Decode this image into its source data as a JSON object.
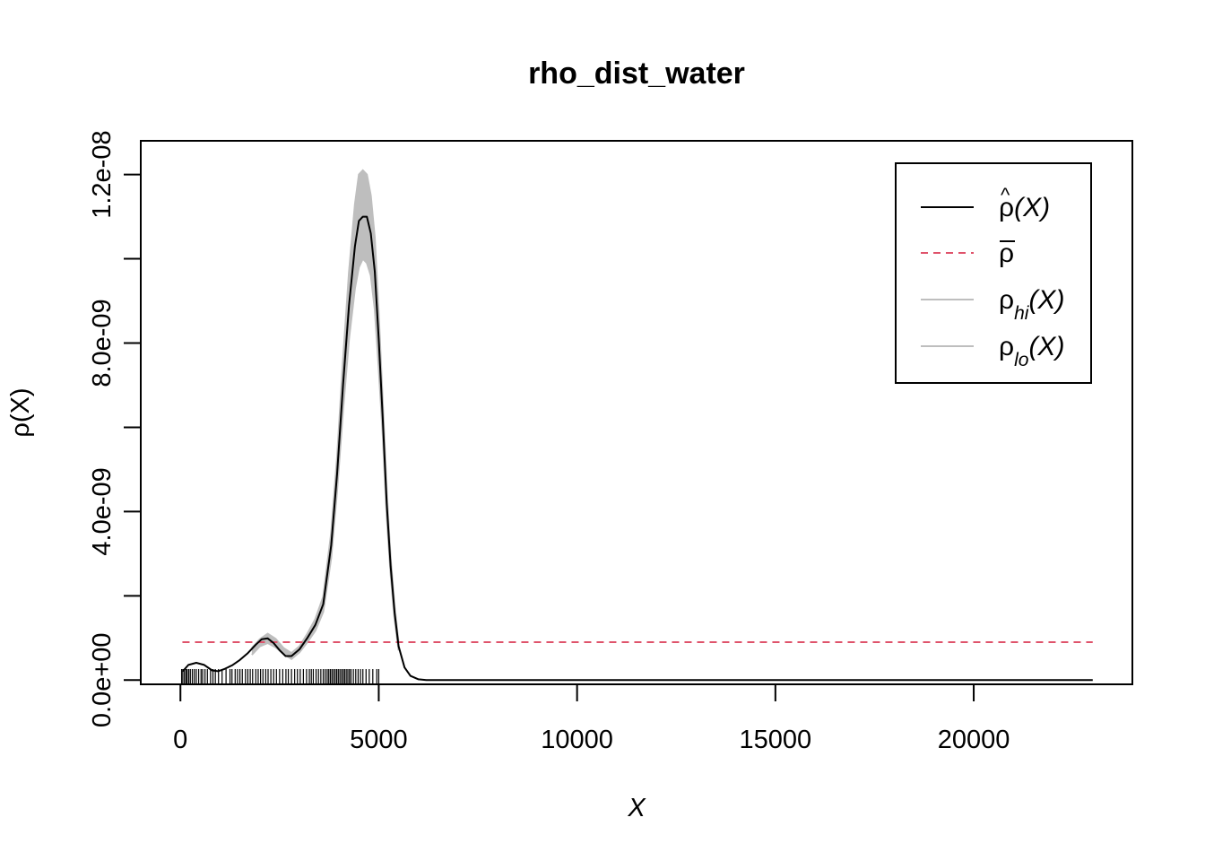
{
  "chart_data": {
    "type": "line",
    "title": "rho_dist_water",
    "xlabel": "X",
    "ylabel": "ρ(X)",
    "xlim": [
      -1000,
      24000
    ],
    "ylim": [
      -1e-10,
      1.28e-08
    ],
    "x_ticks": [
      0,
      5000,
      10000,
      15000,
      20000
    ],
    "x_tick_labels": [
      "0",
      "5000",
      "10000",
      "15000",
      "20000"
    ],
    "y_ticks": [
      0,
      2e-09,
      4e-09,
      6e-09,
      8e-09,
      1e-08,
      1.2e-08
    ],
    "y_tick_labels": [
      "0.0e+00",
      "",
      "4.0e-09",
      "",
      "8.0e-09",
      "",
      "1.2e-08"
    ],
    "grid": false,
    "legend_position": "top-right",
    "colors": {
      "estimate": "#000000",
      "average": "#DF536B",
      "band": "#BEBEBE"
    },
    "legend": [
      {
        "key": "estimate",
        "label_base": "ρ",
        "label_hat": "^",
        "label_sub": "",
        "label_tail": "(X)",
        "style": "solid",
        "color": "#000000"
      },
      {
        "key": "average",
        "label_base": "ρ",
        "label_hat": "",
        "label_bar": true,
        "label_sub": "",
        "label_tail": "",
        "style": "dashed",
        "color": "#DF536B"
      },
      {
        "key": "hi",
        "label_base": "ρ",
        "label_hat": "",
        "label_sub": "hi",
        "label_tail": "(X)",
        "style": "solid",
        "color": "#BEBEBE"
      },
      {
        "key": "lo",
        "label_base": "ρ",
        "label_hat": "",
        "label_sub": "lo",
        "label_tail": "(X)",
        "style": "solid",
        "color": "#BEBEBE"
      }
    ],
    "average_value": 9e-10,
    "series": [
      {
        "key": "estimate",
        "x": [
          50,
          200,
          400,
          600,
          800,
          950,
          1100,
          1300,
          1500,
          1700,
          1900,
          2050,
          2200,
          2350,
          2500,
          2650,
          2800,
          3000,
          3200,
          3400,
          3600,
          3800,
          3950,
          4100,
          4250,
          4400,
          4500,
          4600,
          4700,
          4800,
          4900,
          5000,
          5100,
          5200,
          5300,
          5400,
          5500,
          5650,
          5800,
          6000,
          6200,
          6500,
          7000,
          10000,
          15000,
          20000,
          23000
        ],
        "y": [
          2e-10,
          3.6e-10,
          4.1e-10,
          3.6e-10,
          2.3e-10,
          2.1e-10,
          2.6e-10,
          3.5e-10,
          4.8e-10,
          6.4e-10,
          8.4e-10,
          9.7e-10,
          9.9e-10,
          8.8e-10,
          7.1e-10,
          5.7e-10,
          5.7e-10,
          7.3e-10,
          1e-09,
          1.31e-09,
          1.8e-09,
          3.2e-09,
          4.9e-09,
          7e-09,
          8.9e-09,
          1.03e-08,
          1.09e-08,
          1.1e-08,
          1.1e-08,
          1.06e-08,
          9.7e-09,
          8.1e-09,
          6.2e-09,
          4.2e-09,
          2.7e-09,
          1.6e-09,
          8e-10,
          3e-10,
          1e-10,
          2e-11,
          0,
          0,
          0,
          0,
          0,
          0,
          0
        ]
      },
      {
        "key": "hi",
        "x": [
          1800,
          2000,
          2200,
          2400,
          2600,
          2800,
          3000,
          3200,
          3400,
          3600,
          3800,
          3950,
          4100,
          4250,
          4400,
          4500,
          4600,
          4700,
          4800,
          4900,
          5000,
          5100,
          5200,
          5300,
          5400,
          5500
        ],
        "y": [
          7.6e-10,
          9.7e-10,
          1.1e-09,
          9.8e-10,
          7.6e-10,
          6.4e-10,
          8e-10,
          1.1e-09,
          1.45e-09,
          1.98e-09,
          3.5e-09,
          5.3e-09,
          7.6e-09,
          9.7e-09,
          1.13e-08,
          1.2e-08,
          1.21e-08,
          1.2e-08,
          1.15e-08,
          1.05e-08,
          8.7e-09,
          6.6e-09,
          4.5e-09,
          2.9e-09,
          1.75e-09,
          9e-10
        ]
      },
      {
        "key": "lo",
        "x": [
          1800,
          2000,
          2200,
          2400,
          2600,
          2800,
          3000,
          3200,
          3400,
          3600,
          3800,
          3950,
          4100,
          4250,
          4400,
          4500,
          4600,
          4700,
          4800,
          4900,
          5000,
          5100,
          5200,
          5300,
          5400,
          5500
        ],
        "y": [
          6e-10,
          8e-10,
          8.8e-10,
          7.8e-10,
          6.2e-10,
          5e-10,
          6.6e-10,
          9e-10,
          1.17e-09,
          1.62e-09,
          2.9e-09,
          4.5e-09,
          6.4e-09,
          8.1e-09,
          9.3e-09,
          9.8e-09,
          1e-08,
          9.9e-09,
          9.6e-09,
          8.8e-09,
          7.4e-09,
          5.8e-09,
          3.9e-09,
          2.5e-09,
          1.45e-09,
          7e-10
        ]
      }
    ],
    "rug_x": [
      30,
      60,
      100,
      140,
      170,
      210,
      250,
      300,
      350,
      400,
      460,
      520,
      560,
      620,
      680,
      760,
      820,
      880,
      960,
      1050,
      1150,
      1250,
      1300,
      1380,
      1440,
      1500,
      1560,
      1640,
      1700,
      1760,
      1820,
      1900,
      1960,
      2020,
      2080,
      2150,
      2210,
      2280,
      2350,
      2420,
      2500,
      2580,
      2660,
      2720,
      2800,
      2880,
      2950,
      3020,
      3100,
      3180,
      3250,
      3300,
      3350,
      3420,
      3480,
      3540,
      3600,
      3650,
      3700,
      3740,
      3780,
      3820,
      3860,
      3900,
      3940,
      3980,
      4020,
      4060,
      4100,
      4140,
      4180,
      4220,
      4260,
      4300,
      4360,
      4420,
      4480,
      4540,
      4600,
      4680,
      4760,
      4850,
      4950,
      5000
    ]
  }
}
